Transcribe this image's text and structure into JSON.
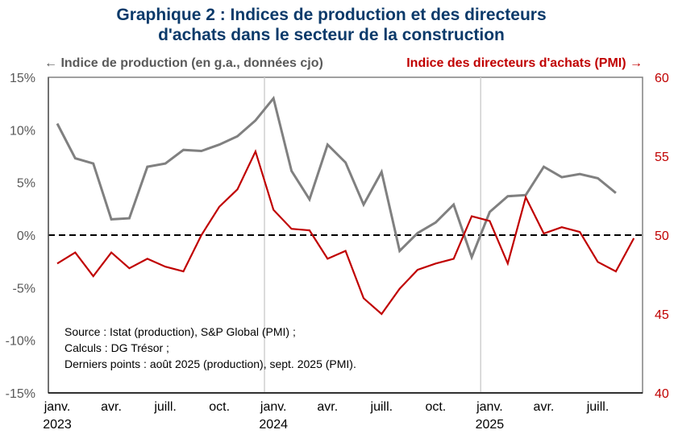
{
  "chart_data": {
    "type": "line",
    "title_lines": [
      "Graphique 2 : Indices de production et des directeurs",
      "d'achats dans le secteur de la construction"
    ],
    "left_legend": "← Indice de production (en g.a., données cjo)",
    "right_legend": "Indice des directeurs d'achats (PMI) →",
    "left_axis": {
      "ylim": [
        -15,
        15
      ],
      "ticks": [
        "15%",
        "10%",
        "5%",
        "0%",
        "-5%",
        "-10%",
        "-15%"
      ],
      "tick_values": [
        15,
        10,
        5,
        0,
        -5,
        -10,
        -15
      ],
      "color": "#595959"
    },
    "right_axis": {
      "ylim": [
        40,
        60
      ],
      "ticks": [
        "60",
        "55",
        "50",
        "45",
        "40"
      ],
      "tick_values": [
        60,
        55,
        50,
        45,
        40
      ],
      "color": "#C00000"
    },
    "x_ticks": [
      {
        "month_index": 0,
        "label": "janv.",
        "year": "2023"
      },
      {
        "month_index": 3,
        "label": "avr.",
        "year": ""
      },
      {
        "month_index": 6,
        "label": "juill.",
        "year": ""
      },
      {
        "month_index": 9,
        "label": "oct.",
        "year": ""
      },
      {
        "month_index": 12,
        "label": "janv.",
        "year": "2024"
      },
      {
        "month_index": 15,
        "label": "avr.",
        "year": ""
      },
      {
        "month_index": 18,
        "label": "juill.",
        "year": ""
      },
      {
        "month_index": 21,
        "label": "oct.",
        "year": ""
      },
      {
        "month_index": 24,
        "label": "janv.",
        "year": "2025"
      },
      {
        "month_index": 27,
        "label": "avr.",
        "year": ""
      },
      {
        "month_index": 30,
        "label": "juill.",
        "year": ""
      }
    ],
    "x_start": "2023-01",
    "x_end": "2025-09",
    "reference_line": {
      "axis": "left",
      "value": 0,
      "style": "dashed"
    },
    "year_separators": [
      "2023-12/2024-01",
      "2024-12/2025-01"
    ],
    "series": [
      {
        "axis": "left",
        "color": "#808080",
        "start": "2023-01",
        "values": [
          10.6,
          7.3,
          6.8,
          1.5,
          1.6,
          6.5,
          6.8,
          8.1,
          8.0,
          8.6,
          9.4,
          10.9,
          13.0,
          6.1,
          3.4,
          8.6,
          6.9,
          2.9,
          6.0,
          -1.5,
          0.2,
          1.2,
          2.9,
          -2.1,
          2.2,
          3.7,
          3.8,
          6.5,
          5.5,
          5.8,
          5.4,
          4.0
        ]
      },
      {
        "axis": "right",
        "color": "#C00000",
        "start": "2023-01",
        "values": [
          48.2,
          48.9,
          47.4,
          48.9,
          47.9,
          48.5,
          48.0,
          47.7,
          50.0,
          51.8,
          52.9,
          55.3,
          51.6,
          50.4,
          50.3,
          48.5,
          49.0,
          46.0,
          45.0,
          46.6,
          47.8,
          48.2,
          48.5,
          51.2,
          50.9,
          48.2,
          52.4,
          50.1,
          50.5,
          50.2,
          48.3,
          47.7,
          49.8
        ]
      }
    ],
    "grid": false,
    "source_lines": [
      "Source : Istat (production), S&P Global (PMI) ;",
      "Calculs : DG Trésor ;",
      "Derniers points : août 2025 (production), sept. 2025 (PMI)."
    ]
  }
}
